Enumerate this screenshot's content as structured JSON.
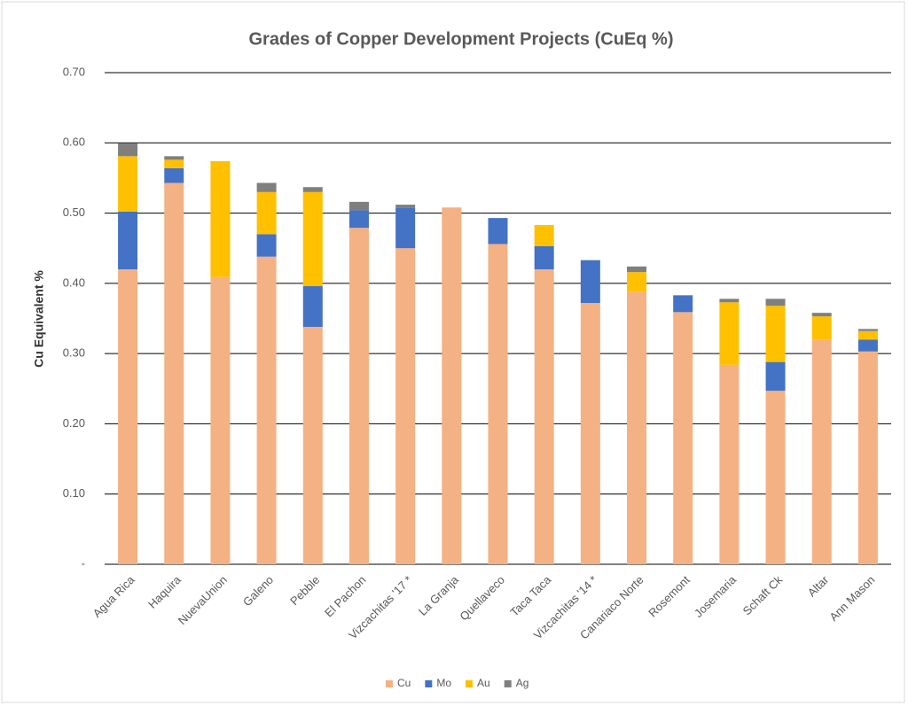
{
  "chart_data": {
    "type": "stacked_bar",
    "title": "Grades of Copper Development Projects (CuEq %)",
    "y_label": "Cu Equivalent %",
    "categories": [
      "Agua Rica",
      "Haquira",
      "NuevaUnion",
      "Galeno",
      "Pebble",
      "El Pachon",
      "Vizcachitas '17 *",
      "La Granja",
      "Quellaveco",
      "Taca Taca",
      "Vizcachitas '14 *",
      "Canariaco Norte",
      "Rosemont",
      "Josemaria",
      "Schaft Ck",
      "Altar",
      "Ann Mason"
    ],
    "series": [
      {
        "name": "Cu",
        "color": "#f4b183",
        "values": [
          0.42,
          0.543,
          0.409,
          0.438,
          0.338,
          0.479,
          0.45,
          0.508,
          0.456,
          0.42,
          0.372,
          0.388,
          0.359,
          0.284,
          0.247,
          0.32,
          0.303
        ]
      },
      {
        "name": "Mo",
        "color": "#4472c4",
        "values": [
          0.082,
          0.021,
          0,
          0.032,
          0.058,
          0.025,
          0.058,
          0,
          0.037,
          0.033,
          0.061,
          0,
          0.024,
          0,
          0.041,
          0,
          0.017
        ]
      },
      {
        "name": "Au",
        "color": "#ffc000",
        "values": [
          0.079,
          0.012,
          0.165,
          0.06,
          0.134,
          0,
          0,
          0,
          0,
          0.03,
          0,
          0.028,
          0,
          0.089,
          0.08,
          0.033,
          0.012
        ]
      },
      {
        "name": "Ag",
        "color": "#7f7f7f",
        "values": [
          0.018,
          0.005,
          0,
          0.013,
          0.007,
          0.012,
          0.004,
          0,
          0,
          0,
          0,
          0.008,
          0,
          0.005,
          0.01,
          0.005,
          0.003
        ]
      }
    ],
    "ylim": [
      0,
      0.7
    ],
    "yticks": [
      {
        "value": 0,
        "label": "-"
      },
      {
        "value": 0.1,
        "label": "0.10"
      },
      {
        "value": 0.2,
        "label": "0.20"
      },
      {
        "value": 0.3,
        "label": "0.30"
      },
      {
        "value": 0.4,
        "label": "0.40"
      },
      {
        "value": 0.5,
        "label": "0.50"
      },
      {
        "value": 0.6,
        "label": "0.60"
      },
      {
        "value": 0.7,
        "label": "0.70"
      }
    ],
    "grid": true,
    "legend": "bottom"
  }
}
